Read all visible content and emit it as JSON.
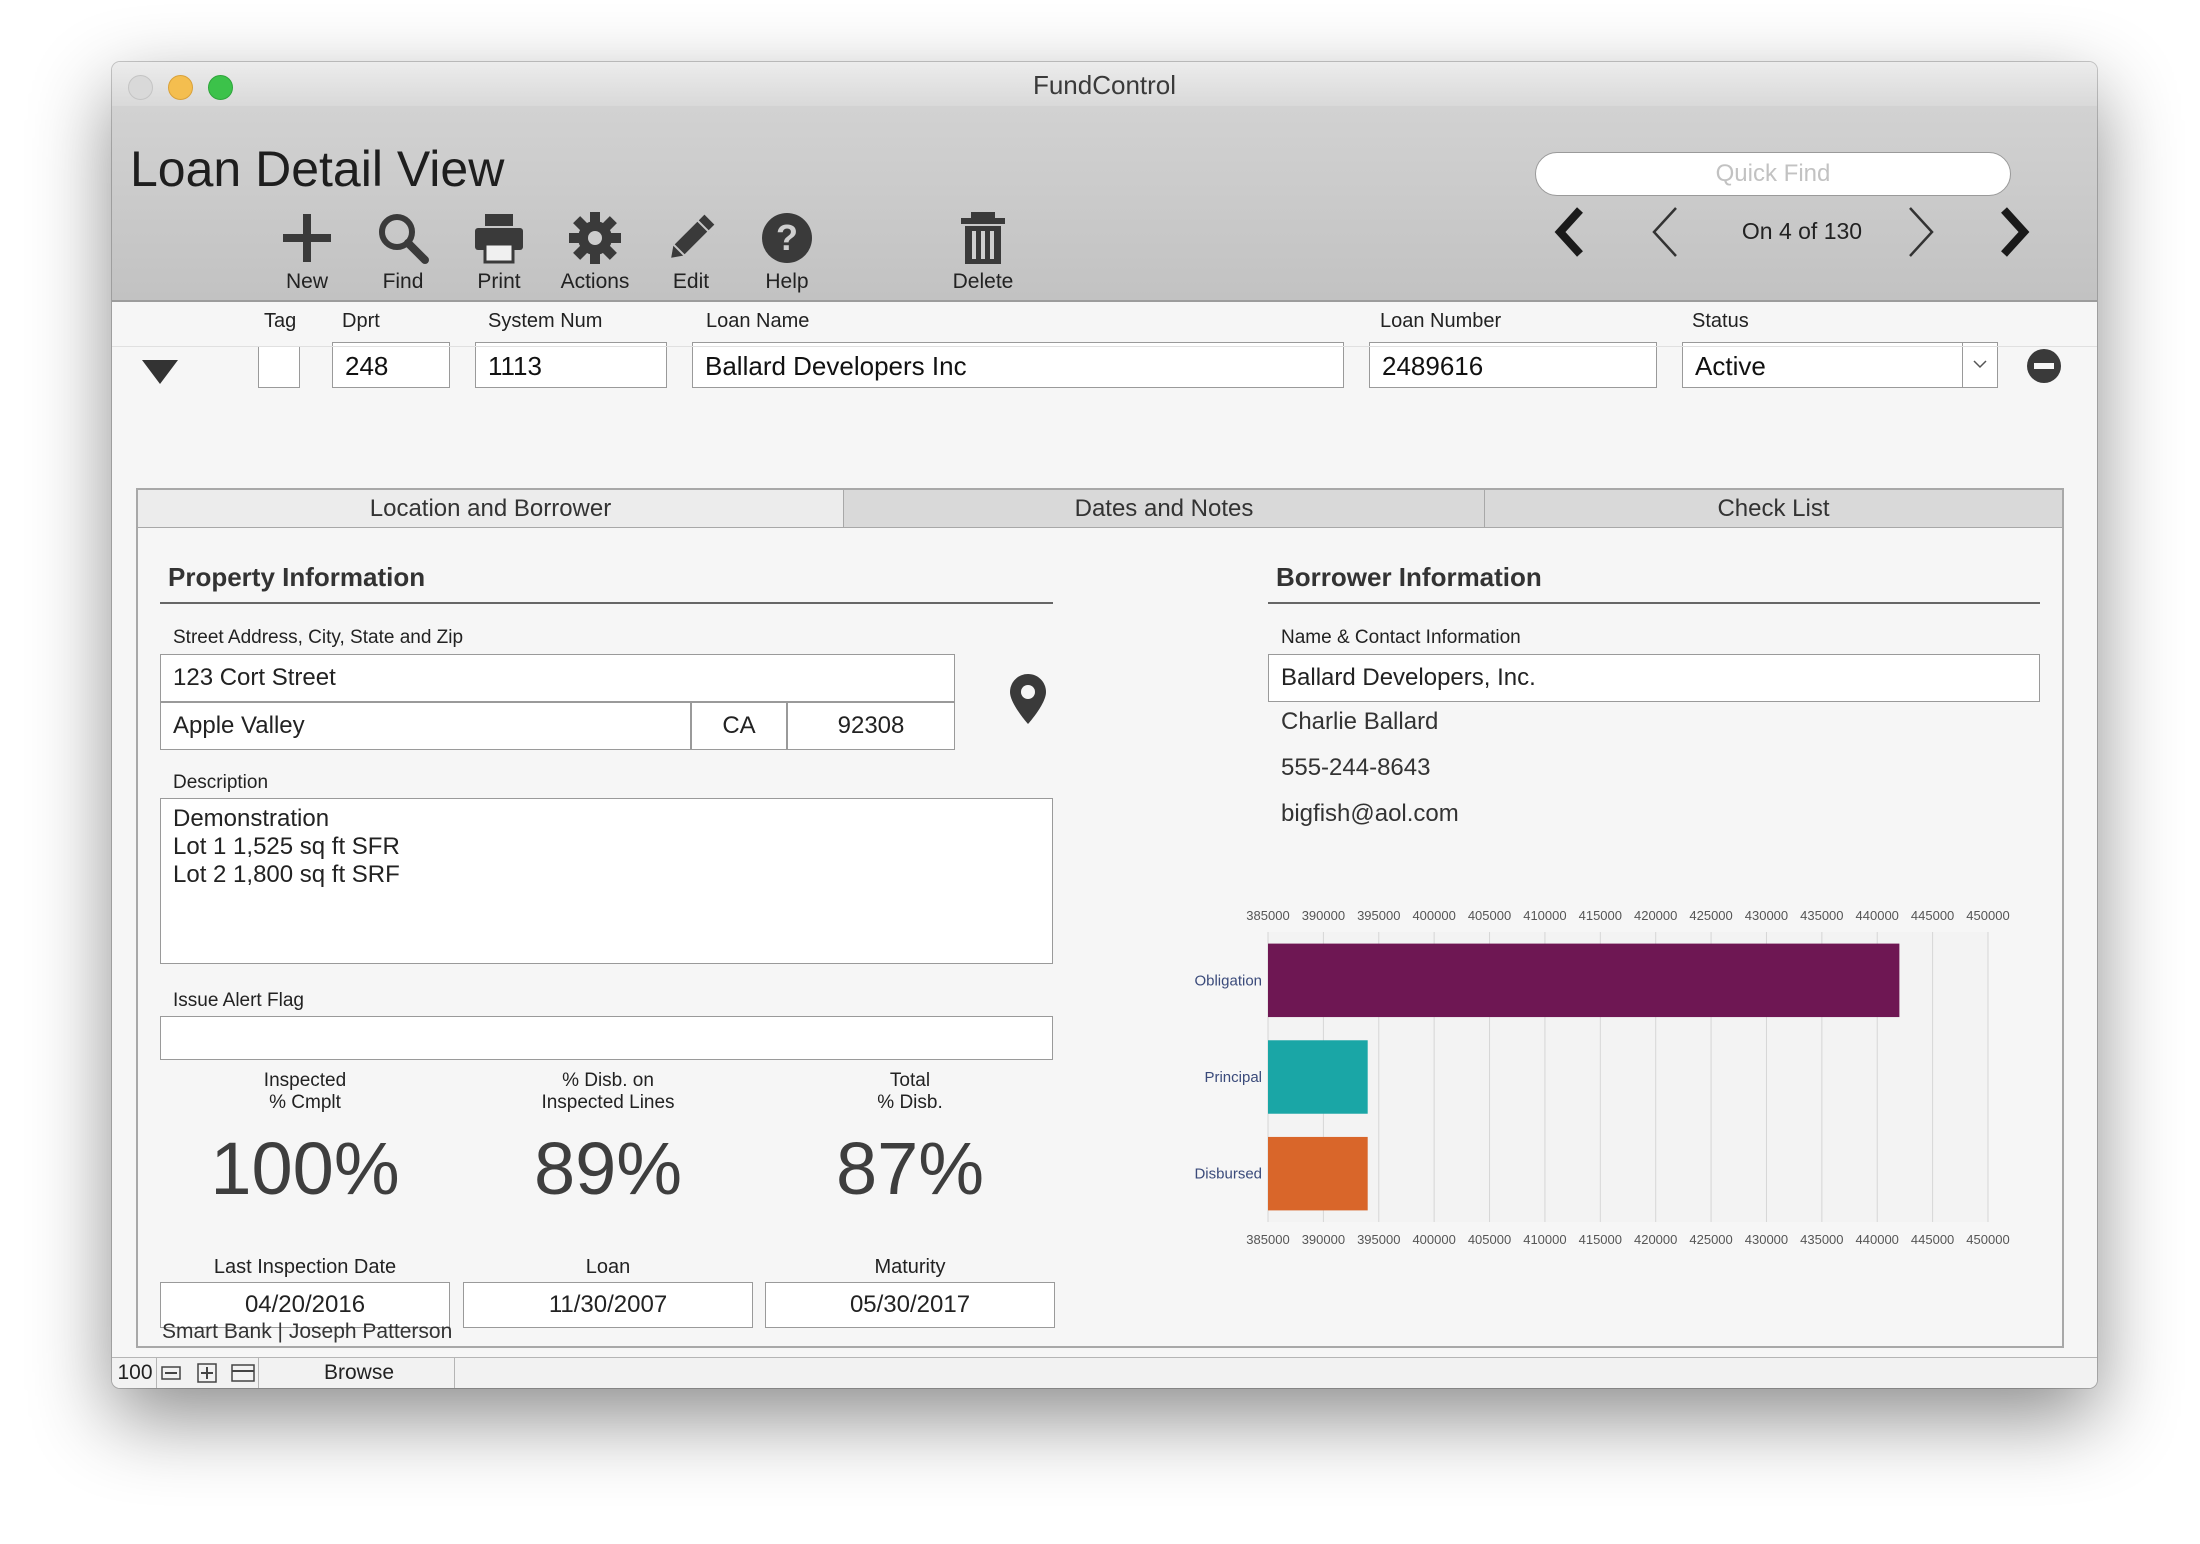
{
  "window": {
    "title": "FundControl"
  },
  "header": {
    "layout_title": "Loan Detail View",
    "quick_find_placeholder": "Quick Find",
    "toolbar": [
      {
        "label": "New",
        "icon": "plus-icon"
      },
      {
        "label": "Find",
        "icon": "search-icon"
      },
      {
        "label": "Print",
        "icon": "printer-icon"
      },
      {
        "label": "Actions",
        "icon": "gear-icon"
      },
      {
        "label": "Edit",
        "icon": "pencil-icon"
      },
      {
        "label": "Help",
        "icon": "help-icon"
      },
      {
        "label": "Delete",
        "icon": "trash-icon"
      }
    ],
    "record_nav": {
      "text": "On 4 of 130"
    }
  },
  "fields": {
    "tag_label": "Tag",
    "dprt_label": "Dprt",
    "dprt_value": "248",
    "system_num_label": "System Num",
    "system_num_value": "1113",
    "loan_name_label": "Loan Name",
    "loan_name_value": "Ballard Developers Inc",
    "loan_number_label": "Loan Number",
    "loan_number_value": "2489616",
    "status_label": "Status",
    "status_value": "Active"
  },
  "tabs": [
    {
      "label": "Location and Borrower",
      "active": true
    },
    {
      "label": "Dates and Notes",
      "active": false
    },
    {
      "label": "Check List",
      "active": false
    }
  ],
  "property": {
    "section_title": "Property Information",
    "address_label": "Street Address, City, State and Zip",
    "street": "123 Cort Street",
    "city": "Apple Valley",
    "state": "CA",
    "zip": "92308",
    "description_label": "Description",
    "description_lines": [
      "Demonstration",
      "Lot 1 1,525 sq ft SFR",
      "Lot 2 1,800 sq ft SRF"
    ],
    "alert_label": "Issue Alert Flag",
    "alert_value": "",
    "metrics": [
      {
        "label_line1": "Inspected",
        "label_line2": "% Cmplt",
        "value": "100%"
      },
      {
        "label_line1": "% Disb. on",
        "label_line2": "Inspected Lines",
        "value": "89%"
      },
      {
        "label_line1": "Total",
        "label_line2": "% Disb.",
        "value": "87%"
      }
    ],
    "dates": [
      {
        "label": "Last Inspection Date",
        "value": "04/20/2016"
      },
      {
        "label": "Loan",
        "value": "11/30/2007"
      },
      {
        "label": "Maturity",
        "value": "05/30/2017"
      }
    ]
  },
  "borrower": {
    "section_title": "Borrower Information",
    "contact_label": "Name & Contact Information",
    "company": "Ballard Developers, Inc.",
    "contact_name": "Charlie Ballard",
    "phone": "555-244-8643",
    "email": "bigfish@aol.com"
  },
  "chart_data": {
    "type": "bar",
    "orientation": "horizontal",
    "categories": [
      "Obligation",
      "Principal",
      "Disbursed"
    ],
    "values": [
      442000,
      394000,
      394000
    ],
    "colors": [
      "#6e1753",
      "#1aa6a6",
      "#d9662a"
    ],
    "xlim": [
      385000,
      450000
    ],
    "x_ticks": [
      385000,
      390000,
      395000,
      400000,
      405000,
      410000,
      415000,
      420000,
      425000,
      430000,
      435000,
      440000,
      445000,
      450000
    ],
    "x_tick_labels": [
      "385000",
      "390000",
      "395000",
      "400000",
      "405000",
      "410000",
      "415000",
      "420000",
      "425000",
      "430000",
      "435000",
      "440000",
      "445000",
      "450000"
    ],
    "grid": true,
    "title": "",
    "xlabel": "",
    "ylabel": ""
  },
  "footer": {
    "text": "Smart Bank | Joseph Patterson",
    "zoom": "100",
    "mode": "Browse"
  }
}
